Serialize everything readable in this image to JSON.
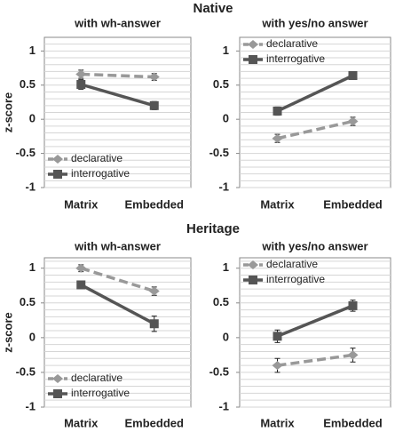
{
  "headings": [
    "Native",
    "Heritage"
  ],
  "chart_data": [
    {
      "type": "line",
      "title": "with wh-answer",
      "ylabel": "z-score",
      "categories": [
        "Matrix",
        "Embedded"
      ],
      "ylim": [
        -1,
        1.2
      ],
      "yticks": [
        -1,
        -0.5,
        0,
        0.5,
        1
      ],
      "minor_yticks": [
        -1,
        -0.9,
        -0.8,
        -0.7,
        -0.6,
        -0.5,
        -0.4,
        -0.3,
        -0.2,
        -0.1,
        0,
        0.1,
        0.2,
        0.3,
        0.4,
        0.5,
        0.6,
        0.7,
        0.8,
        0.9,
        1,
        1.1
      ],
      "grid": true,
      "legend": "lower left",
      "series": [
        {
          "name": "declarative",
          "color": "#999999",
          "dashed": true,
          "marker": "diamond",
          "values": [
            0.66,
            0.62
          ],
          "errors": [
            0.06,
            0.05
          ]
        },
        {
          "name": "interrogative",
          "color": "#555555",
          "dashed": false,
          "marker": "square",
          "values": [
            0.51,
            0.2
          ],
          "errors": [
            0.07,
            0.06
          ]
        }
      ]
    },
    {
      "type": "line",
      "title": "with yes/no answer",
      "categories": [
        "Matrix",
        "Embedded"
      ],
      "ylim": [
        -1,
        1.2
      ],
      "yticks": [
        -1,
        -0.5,
        0,
        0.5,
        1
      ],
      "minor_yticks": [
        -1,
        -0.9,
        -0.8,
        -0.7,
        -0.6,
        -0.5,
        -0.4,
        -0.3,
        -0.2,
        -0.1,
        0,
        0.1,
        0.2,
        0.3,
        0.4,
        0.5,
        0.6,
        0.7,
        0.8,
        0.9,
        1,
        1.1
      ],
      "grid": true,
      "legend": "upper left",
      "series": [
        {
          "name": "declarative",
          "color": "#999999",
          "dashed": true,
          "marker": "diamond",
          "values": [
            -0.28,
            -0.03
          ],
          "errors": [
            0.06,
            0.06
          ]
        },
        {
          "name": "interrogative",
          "color": "#555555",
          "dashed": false,
          "marker": "square",
          "values": [
            0.12,
            0.64
          ],
          "errors": [
            0.06,
            0.05
          ]
        }
      ]
    },
    {
      "type": "line",
      "title": "with wh-answer",
      "ylabel": "z-score",
      "categories": [
        "Matrix",
        "Embedded"
      ],
      "ylim": [
        -1,
        1.15
      ],
      "yticks": [
        -1,
        -0.5,
        0,
        0.5,
        1
      ],
      "minor_yticks": [
        -1,
        -0.9,
        -0.8,
        -0.7,
        -0.6,
        -0.5,
        -0.4,
        -0.3,
        -0.2,
        -0.1,
        0,
        0.1,
        0.2,
        0.3,
        0.4,
        0.5,
        0.6,
        0.7,
        0.8,
        0.9,
        1,
        1.1
      ],
      "grid": true,
      "legend": "lower left",
      "series": [
        {
          "name": "declarative",
          "color": "#999999",
          "dashed": true,
          "marker": "diamond",
          "values": [
            1.0,
            0.67
          ],
          "errors": [
            0.05,
            0.06
          ]
        },
        {
          "name": "interrogative",
          "color": "#555555",
          "dashed": false,
          "marker": "square",
          "values": [
            0.76,
            0.2
          ],
          "errors": [
            0.05,
            0.11
          ]
        }
      ]
    },
    {
      "type": "line",
      "title": "with yes/no answer",
      "categories": [
        "Matrix",
        "Embedded"
      ],
      "ylim": [
        -1,
        1.15
      ],
      "yticks": [
        -1,
        -0.5,
        0,
        0.5,
        1
      ],
      "minor_yticks": [
        -1,
        -0.9,
        -0.8,
        -0.7,
        -0.6,
        -0.5,
        -0.4,
        -0.3,
        -0.2,
        -0.1,
        0,
        0.1,
        0.2,
        0.3,
        0.4,
        0.5,
        0.6,
        0.7,
        0.8,
        0.9,
        1,
        1.1
      ],
      "grid": true,
      "legend": "upper left",
      "series": [
        {
          "name": "declarative",
          "color": "#999999",
          "dashed": true,
          "marker": "diamond",
          "values": [
            -0.4,
            -0.25
          ],
          "errors": [
            0.1,
            0.1
          ]
        },
        {
          "name": "interrogative",
          "color": "#555555",
          "dashed": false,
          "marker": "square",
          "values": [
            0.02,
            0.46
          ],
          "errors": [
            0.09,
            0.08
          ]
        }
      ]
    }
  ]
}
